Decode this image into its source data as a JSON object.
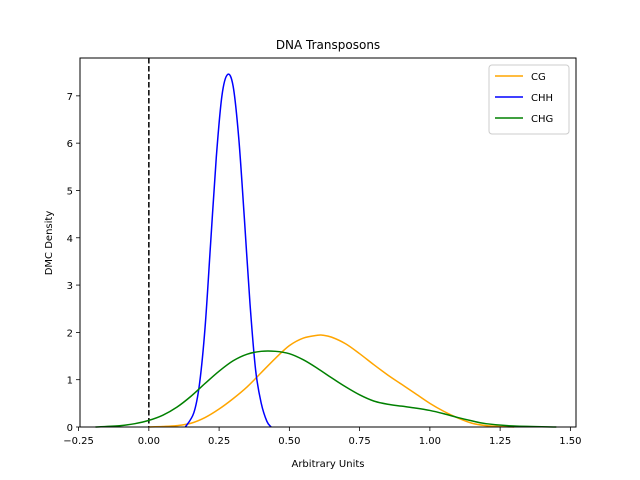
{
  "chart_data": {
    "type": "line",
    "title": "DNA Transposons",
    "xlabel": "Arbitrary Units",
    "ylabel": "DMC Density",
    "xlim": [
      -0.245,
      1.52
    ],
    "ylim": [
      0,
      7.8
    ],
    "xticks": [
      -0.25,
      0.0,
      0.25,
      0.5,
      0.75,
      1.0,
      1.25,
      1.5
    ],
    "xtick_labels": [
      "−0.25",
      "0.00",
      "0.25",
      "0.50",
      "0.75",
      "1.00",
      "1.25",
      "1.50"
    ],
    "yticks": [
      0,
      1,
      2,
      3,
      4,
      5,
      6,
      7
    ],
    "ytick_labels": [
      "0",
      "1",
      "2",
      "3",
      "4",
      "5",
      "6",
      "7"
    ],
    "grid": false,
    "legend_position": "top-right",
    "reference_line": {
      "x": 0.0,
      "style": "dashed",
      "color": "#000000"
    },
    "series": [
      {
        "name": "CG",
        "color": "#FFA500",
        "x": [
          0.0,
          0.05,
          0.1,
          0.15,
          0.2,
          0.25,
          0.3,
          0.35,
          0.4,
          0.45,
          0.5,
          0.55,
          0.6,
          0.62,
          0.65,
          0.7,
          0.75,
          0.8,
          0.85,
          0.9,
          0.95,
          1.0,
          1.05,
          1.1,
          1.15,
          1.2,
          1.25,
          1.3
        ],
        "y": [
          0.0,
          0.01,
          0.03,
          0.08,
          0.2,
          0.38,
          0.6,
          0.85,
          1.15,
          1.45,
          1.72,
          1.88,
          1.94,
          1.94,
          1.9,
          1.76,
          1.55,
          1.32,
          1.1,
          0.9,
          0.7,
          0.5,
          0.33,
          0.19,
          0.08,
          0.03,
          0.01,
          0.0
        ]
      },
      {
        "name": "CHH",
        "color": "#0000FF",
        "x": [
          0.13,
          0.16,
          0.18,
          0.2,
          0.22,
          0.24,
          0.26,
          0.28,
          0.3,
          0.32,
          0.34,
          0.36,
          0.38,
          0.4,
          0.42,
          0.435
        ],
        "y": [
          0.0,
          0.3,
          0.9,
          2.1,
          3.9,
          5.7,
          7.0,
          7.45,
          7.2,
          6.1,
          4.4,
          2.6,
          1.2,
          0.5,
          0.12,
          0.0
        ]
      },
      {
        "name": "CHG",
        "color": "#008000",
        "x": [
          -0.19,
          -0.1,
          -0.05,
          0.0,
          0.05,
          0.1,
          0.15,
          0.2,
          0.25,
          0.3,
          0.35,
          0.4,
          0.45,
          0.5,
          0.55,
          0.6,
          0.65,
          0.7,
          0.75,
          0.8,
          0.85,
          0.9,
          0.95,
          1.0,
          1.05,
          1.1,
          1.15,
          1.2,
          1.3,
          1.45
        ],
        "y": [
          0.0,
          0.03,
          0.07,
          0.14,
          0.25,
          0.42,
          0.65,
          0.92,
          1.18,
          1.4,
          1.54,
          1.6,
          1.6,
          1.55,
          1.42,
          1.24,
          1.04,
          0.85,
          0.68,
          0.55,
          0.48,
          0.44,
          0.4,
          0.35,
          0.28,
          0.2,
          0.13,
          0.07,
          0.02,
          0.0
        ]
      }
    ]
  }
}
